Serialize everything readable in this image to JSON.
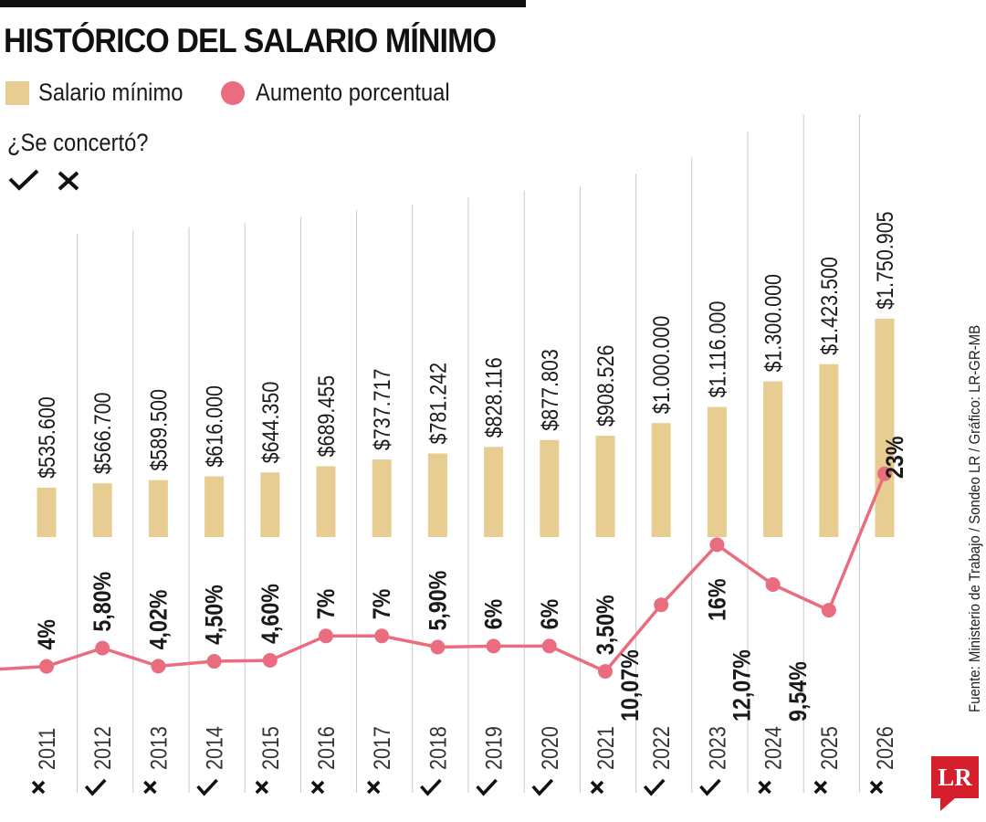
{
  "title": "HISTÓRICO DEL SALARIO MÍNIMO",
  "legend": {
    "salary_label": "Salario mínimo",
    "increase_label": "Aumento porcentual",
    "concert_question": "¿Se concertó?"
  },
  "source": "Fuente: Ministerio de Trabajo / Sondeo LR / Gráfico: LR-GR-MB",
  "logo_text": "LR",
  "colors": {
    "bar": "#e8cd93",
    "line": "#e96d7f",
    "grid": "#c8c8c8",
    "text": "#1a1a1a",
    "logo": "#d61f2c"
  },
  "chart_data": {
    "type": "bar+line",
    "categories": [
      "2011",
      "2012",
      "2013",
      "2014",
      "2015",
      "2016",
      "2017",
      "2018",
      "2019",
      "2020",
      "2021",
      "2022",
      "2023",
      "2024",
      "2025",
      "2026"
    ],
    "series": [
      {
        "name": "Salario mínimo",
        "type": "bar",
        "values": [
          535600,
          566700,
          589500,
          616000,
          644350,
          689455,
          737717,
          781242,
          828116,
          877803,
          908526,
          1000000,
          1116000,
          1300000,
          1423500,
          1750905
        ],
        "labels": [
          "$535.600",
          "$566.700",
          "$589.500",
          "$616.000",
          "$644.350",
          "$689.455",
          "$737.717",
          "$781.242",
          "$828.116",
          "$877.803",
          "$908.526",
          "$1.000.000",
          "$1.116.000",
          "$1.300.000",
          "$1.423.500",
          "$1.750.905"
        ]
      },
      {
        "name": "Aumento porcentual",
        "type": "line",
        "values": [
          4,
          5.8,
          4.02,
          4.5,
          4.6,
          7,
          7,
          5.9,
          6,
          6,
          3.5,
          10.07,
          16,
          12.07,
          9.54,
          23
        ],
        "labels": [
          "4%",
          "5,80%",
          "4,02%",
          "4,50%",
          "4,60%",
          "7%",
          "7%",
          "5,90%",
          "6%",
          "6%",
          "3,50%",
          "10,07%",
          "16%",
          "12,07%",
          "9,54%",
          "23%"
        ]
      }
    ],
    "concerted": [
      false,
      true,
      false,
      true,
      false,
      false,
      false,
      true,
      true,
      true,
      false,
      true,
      true,
      false,
      false,
      false
    ],
    "concert_marks": [
      "✕",
      "✓"
    ]
  }
}
